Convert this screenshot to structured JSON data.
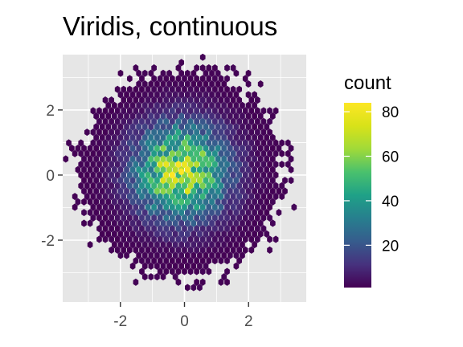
{
  "chart_data": {
    "type": "heatmap",
    "subtype": "hexbin",
    "title": "Viridis, continuous",
    "xlabel": "",
    "ylabel": "",
    "xlim": [
      -3.8,
      3.8
    ],
    "ylim": [
      -3.9,
      3.7
    ],
    "x_ticks": [
      -2,
      0,
      2
    ],
    "y_ticks": [
      -2,
      0,
      2
    ],
    "x_tick_labels": [
      "-2",
      "0",
      "2"
    ],
    "y_tick_labels": [
      "-2",
      "0",
      "2"
    ],
    "grid": true,
    "panel_background": "#e6e6e6",
    "gridline_color": "#ffffff",
    "colormap": "viridis",
    "legend": {
      "title": "count",
      "placement": "right",
      "min": 1,
      "max": 84,
      "ticks": [
        20,
        40,
        60,
        80
      ],
      "tick_labels": [
        "20",
        "40",
        "60",
        "80"
      ]
    },
    "distribution": {
      "description_kind": "bivariate standard normal sample, hexagonal bins",
      "peak_count": 84,
      "peak_center": [
        -0.1,
        0.1
      ],
      "sd": 1
    }
  }
}
